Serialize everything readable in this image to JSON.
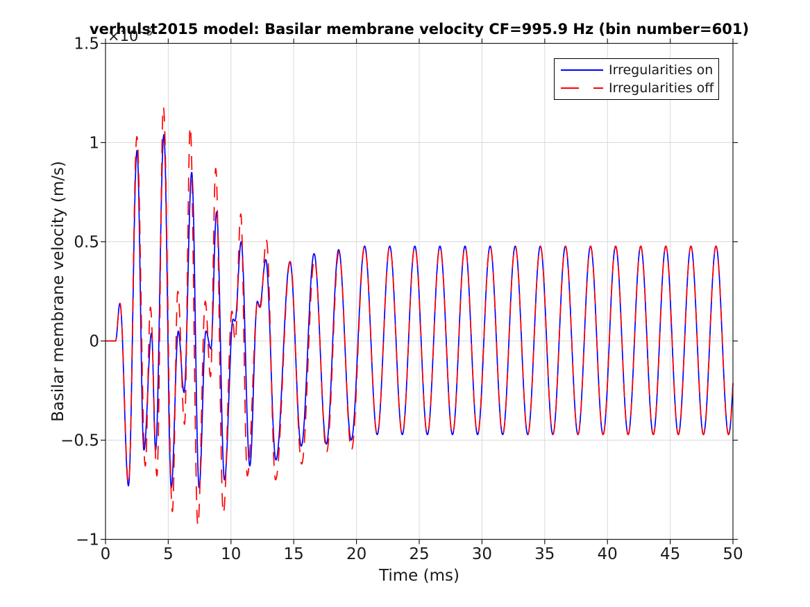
{
  "chart_data": {
    "type": "line",
    "title": "verhulst2015 model: Basilar membrane velocity CF=995.9 Hz (bin number=601)",
    "xlabel": "Time (ms)",
    "ylabel": "Basilar membrane velocity (m/s)",
    "y_scale_offset": {
      "base": "×10",
      "exponent": "−5"
    },
    "xlim": [
      0,
      50
    ],
    "ylim": [
      -1,
      1.5
    ],
    "x_ticks": [
      0,
      5,
      10,
      15,
      20,
      25,
      30,
      35,
      40,
      45,
      50
    ],
    "x_tick_labels": [
      "0",
      "5",
      "10",
      "15",
      "20",
      "25",
      "30",
      "35",
      "40",
      "45",
      "50"
    ],
    "y_ticks": [
      -1,
      -0.5,
      0,
      0.5,
      1,
      1.5
    ],
    "y_tick_labels": [
      "−1",
      "−0.5",
      "0",
      "0.5",
      "1",
      "1.5"
    ],
    "grid": true,
    "legend_position": "upper right",
    "colors": {
      "spine": "#1a1a1a",
      "grid": "#d9d9d9",
      "tick_label": "#1a1a1a",
      "title": "#000000"
    },
    "series": [
      {
        "name": "Irregularities on",
        "color": "#0000ff",
        "line_style": "solid",
        "value_unit": "1e-5 m/s",
        "extrema_t_v": [
          [
            0,
            0
          ],
          [
            0.8,
            0
          ],
          [
            1.15,
            0.19
          ],
          [
            1.83,
            -0.73
          ],
          [
            2.51,
            0.96
          ],
          [
            3.06,
            -0.55
          ],
          [
            3.67,
            0.04
          ],
          [
            3.99,
            -0.55
          ],
          [
            4.65,
            1.04
          ],
          [
            5.24,
            -0.74
          ],
          [
            5.8,
            0.05
          ],
          [
            6.26,
            -0.26
          ],
          [
            6.87,
            0.85
          ],
          [
            7.46,
            -0.74
          ],
          [
            8.0,
            0.05
          ],
          [
            8.4,
            -0.04
          ],
          [
            8.85,
            0.65
          ],
          [
            9.48,
            -0.7
          ],
          [
            10.17,
            0.11
          ],
          [
            10.32,
            0.1
          ],
          [
            10.81,
            0.5
          ],
          [
            11.5,
            -0.63
          ],
          [
            12.1,
            0.2
          ],
          [
            12.28,
            0.17
          ],
          [
            12.77,
            0.41
          ],
          [
            13.58,
            -0.6
          ],
          [
            14.7,
            0.4
          ],
          [
            15.6,
            -0.53
          ],
          [
            16.62,
            0.44
          ],
          [
            17.6,
            -0.52
          ],
          [
            18.58,
            0.46
          ],
          [
            19.58,
            -0.5
          ]
        ],
        "steady_state": {
          "t_start": 20.65,
          "period": 2,
          "v_peak": 0.478,
          "v_trough": -0.472,
          "t_end": 50
        }
      },
      {
        "name": "Irregularities off",
        "color": "#ff0000",
        "line_style": "dashed",
        "value_unit": "1e-5 m/s",
        "extrema_t_v": [
          [
            0,
            0
          ],
          [
            0.8,
            0
          ],
          [
            1.15,
            0.19
          ],
          [
            1.84,
            -0.72
          ],
          [
            2.5,
            1.03
          ],
          [
            3.17,
            -0.63
          ],
          [
            3.58,
            0.17
          ],
          [
            4.1,
            -0.68
          ],
          [
            4.61,
            1.18
          ],
          [
            5.33,
            -0.86
          ],
          [
            5.76,
            0.25
          ],
          [
            6.3,
            -0.42
          ],
          [
            6.75,
            1.08
          ],
          [
            7.36,
            -0.93
          ],
          [
            7.95,
            0.2
          ],
          [
            8.37,
            -0.18
          ],
          [
            8.78,
            0.87
          ],
          [
            9.39,
            -0.87
          ],
          [
            10.08,
            0.15
          ],
          [
            10.33,
            0.0
          ],
          [
            10.78,
            0.64
          ],
          [
            11.3,
            -0.68
          ],
          [
            12.15,
            0.21
          ],
          [
            12.33,
            0.17
          ],
          [
            12.82,
            0.51
          ],
          [
            13.55,
            -0.7
          ],
          [
            14.72,
            0.4
          ],
          [
            15.63,
            -0.62
          ],
          [
            16.65,
            0.41
          ],
          [
            17.62,
            -0.56
          ],
          [
            18.6,
            0.45
          ],
          [
            19.6,
            -0.55
          ]
        ],
        "steady_state": {
          "t_start": 20.65,
          "period": 2,
          "v_peak": 0.478,
          "v_trough": -0.472,
          "t_end": 50
        }
      }
    ]
  }
}
